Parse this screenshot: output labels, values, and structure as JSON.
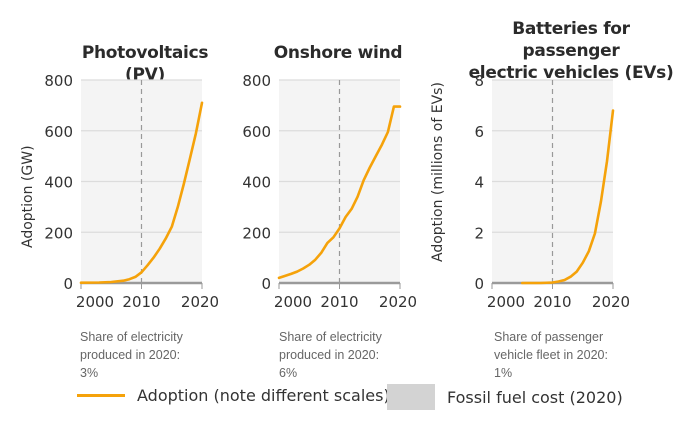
{
  "colors": {
    "adoption_line": "#f5a20a",
    "plot_bg": "#f4f4f4",
    "gridline": "#dcdcdc",
    "baseline": "#9a9a9a",
    "dashed_marker": "#999999",
    "fossil_cost_swatch": "#d3d3d3"
  },
  "chart_data": [
    {
      "type": "line",
      "title": "Photovoltaics (PV)",
      "ylabel": "Adoption (GW)",
      "xlabel": "",
      "xlim": [
        2000,
        2020
      ],
      "ylim": [
        0,
        800
      ],
      "xticks": [
        2000,
        2010,
        2020
      ],
      "yticks": [
        0,
        200,
        400,
        600,
        800
      ],
      "marker_year": 2010,
      "grid": true,
      "x": [
        2000,
        2003,
        2005,
        2007,
        2008,
        2009,
        2010,
        2011,
        2012,
        2013,
        2014,
        2015,
        2016,
        2017,
        2018,
        2019,
        2020
      ],
      "y": [
        1,
        2,
        4,
        9,
        15,
        24,
        42,
        70,
        100,
        135,
        175,
        222,
        300,
        390,
        490,
        590,
        710
      ],
      "note": "Share of electricity produced in 2020: 3%"
    },
    {
      "type": "line",
      "title": "Onshore wind",
      "ylabel": "",
      "xlabel": "",
      "xlim": [
        2000,
        2020
      ],
      "ylim": [
        0,
        800
      ],
      "xticks": [
        2000,
        2010,
        2020
      ],
      "yticks": [
        0,
        200,
        400,
        600,
        800
      ],
      "marker_year": 2010,
      "grid": true,
      "x": [
        2000,
        2001,
        2002,
        2003,
        2004,
        2005,
        2006,
        2007,
        2008,
        2009,
        2010,
        2011,
        2012,
        2013,
        2014,
        2015,
        2016,
        2017,
        2018,
        2019,
        2020
      ],
      "y": [
        20,
        28,
        36,
        45,
        57,
        72,
        92,
        120,
        158,
        180,
        215,
        260,
        292,
        340,
        405,
        455,
        500,
        545,
        595,
        695,
        695
      ],
      "note": "Share of electricity produced in 2020: 6%"
    },
    {
      "type": "line",
      "title": "Batteries for passenger electric vehicles (EVs)",
      "ylabel": "Adoption (millions of EVs)",
      "xlabel": "",
      "xlim": [
        2000,
        2020
      ],
      "ylim": [
        0,
        8
      ],
      "xticks": [
        2000,
        2010,
        2020
      ],
      "yticks": [
        0,
        2,
        4,
        6,
        8
      ],
      "marker_year": 2010,
      "grid": true,
      "x": [
        2005,
        2008,
        2010,
        2011,
        2012,
        2013,
        2014,
        2015,
        2016,
        2017,
        2018,
        2019,
        2020
      ],
      "y": [
        0,
        0,
        0.02,
        0.06,
        0.12,
        0.25,
        0.45,
        0.8,
        1.25,
        1.95,
        3.2,
        4.8,
        6.8
      ],
      "note": "Share of passenger vehicle fleet in 2020: 1%"
    }
  ],
  "legend": {
    "adoption_label": "Adoption (note different scales)",
    "fossil_label": "Fossil fuel cost (2020)"
  }
}
